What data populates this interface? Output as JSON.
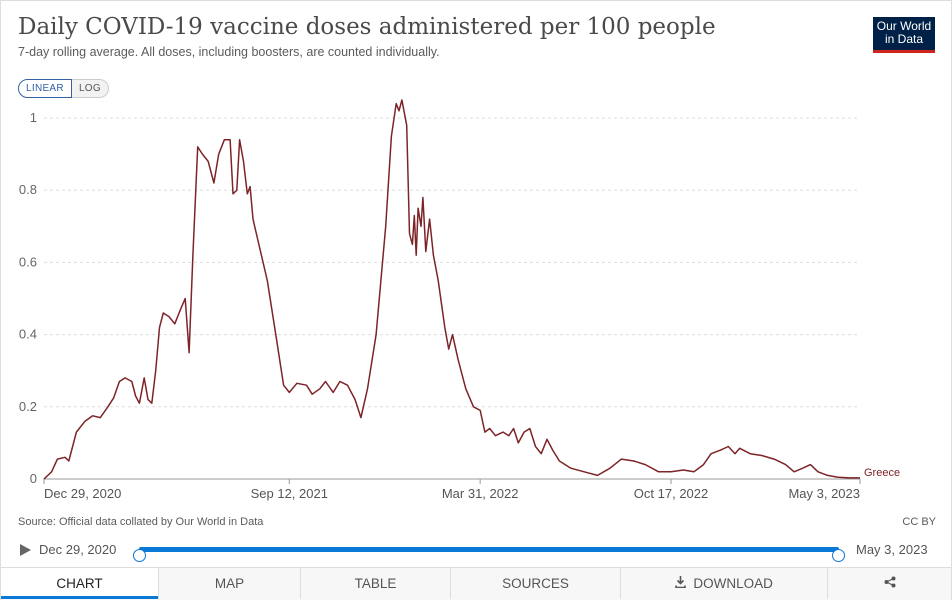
{
  "header": {
    "title": "Daily COVID-19 vaccine doses administered per 100 people",
    "subtitle": "7-day rolling average. All doses, including boosters, are counted individually.",
    "logo_line1": "Our World",
    "logo_line2": "in Data"
  },
  "scale_toggle": {
    "linear": "LINEAR",
    "log": "LOG",
    "selected": "LINEAR"
  },
  "footer": {
    "source": "Source: Official data collated by Our World in Data",
    "license": "CC BY"
  },
  "timeline": {
    "start": "Dec 29, 2020",
    "end": "May 3, 2023"
  },
  "tabs": [
    {
      "label": "CHART",
      "icon": ""
    },
    {
      "label": "MAP",
      "icon": ""
    },
    {
      "label": "TABLE",
      "icon": ""
    },
    {
      "label": "SOURCES",
      "icon": ""
    },
    {
      "label": "DOWNLOAD",
      "icon": "download-icon"
    },
    {
      "label": "",
      "icon": "share-icon"
    }
  ],
  "colors": {
    "series": "#7d2428",
    "accent": "#0a78d6",
    "grid": "#dddddd"
  },
  "chart_data": {
    "type": "line",
    "ylim": [
      0,
      1.05
    ],
    "yticks": [
      0,
      0.2,
      0.4,
      0.6,
      0.8,
      1
    ],
    "ytick_labels": [
      "0",
      "0.2",
      "0.4",
      "0.6",
      "0.8",
      "1"
    ],
    "xticks": [
      {
        "label": "Dec 29, 2020",
        "date": "2020-12-29"
      },
      {
        "label": "Sep 12, 2021",
        "date": "2021-09-12"
      },
      {
        "label": "Mar 31, 2022",
        "date": "2022-03-31"
      },
      {
        "label": "Oct 17, 2022",
        "date": "2022-10-17"
      },
      {
        "label": "May 3, 2023",
        "date": "2023-05-03"
      }
    ],
    "grid": "horizontal dashed",
    "series": [
      {
        "name": "Greece",
        "points": [
          [
            "2020-12-29",
            0.0
          ],
          [
            "2021-01-06",
            0.02
          ],
          [
            "2021-01-12",
            0.055
          ],
          [
            "2021-01-20",
            0.06
          ],
          [
            "2021-01-24",
            0.05
          ],
          [
            "2021-02-01",
            0.13
          ],
          [
            "2021-02-10",
            0.16
          ],
          [
            "2021-02-18",
            0.175
          ],
          [
            "2021-02-26",
            0.17
          ],
          [
            "2021-03-06",
            0.2
          ],
          [
            "2021-03-12",
            0.225
          ],
          [
            "2021-03-18",
            0.27
          ],
          [
            "2021-03-24",
            0.28
          ],
          [
            "2021-03-31",
            0.27
          ],
          [
            "2021-04-04",
            0.23
          ],
          [
            "2021-04-08",
            0.21
          ],
          [
            "2021-04-13",
            0.28
          ],
          [
            "2021-04-17",
            0.22
          ],
          [
            "2021-04-21",
            0.21
          ],
          [
            "2021-04-25",
            0.3
          ],
          [
            "2021-04-29",
            0.42
          ],
          [
            "2021-05-03",
            0.46
          ],
          [
            "2021-05-09",
            0.45
          ],
          [
            "2021-05-15",
            0.43
          ],
          [
            "2021-05-21",
            0.47
          ],
          [
            "2021-05-26",
            0.5
          ],
          [
            "2021-05-30",
            0.35
          ],
          [
            "2021-06-03",
            0.62
          ],
          [
            "2021-06-08",
            0.92
          ],
          [
            "2021-06-13",
            0.9
          ],
          [
            "2021-06-19",
            0.88
          ],
          [
            "2021-06-25",
            0.82
          ],
          [
            "2021-06-30",
            0.9
          ],
          [
            "2021-07-06",
            0.94
          ],
          [
            "2021-07-12",
            0.94
          ],
          [
            "2021-07-15",
            0.79
          ],
          [
            "2021-07-19",
            0.8
          ],
          [
            "2021-07-22",
            0.94
          ],
          [
            "2021-07-26",
            0.88
          ],
          [
            "2021-07-30",
            0.79
          ],
          [
            "2021-08-02",
            0.81
          ],
          [
            "2021-08-05",
            0.72
          ],
          [
            "2021-08-12",
            0.64
          ],
          [
            "2021-08-20",
            0.55
          ],
          [
            "2021-08-30",
            0.38
          ],
          [
            "2021-09-06",
            0.26
          ],
          [
            "2021-09-12",
            0.24
          ],
          [
            "2021-09-20",
            0.265
          ],
          [
            "2021-09-30",
            0.26
          ],
          [
            "2021-10-06",
            0.235
          ],
          [
            "2021-10-14",
            0.25
          ],
          [
            "2021-10-20",
            0.27
          ],
          [
            "2021-10-28",
            0.24
          ],
          [
            "2021-11-04",
            0.27
          ],
          [
            "2021-11-12",
            0.26
          ],
          [
            "2021-11-20",
            0.22
          ],
          [
            "2021-11-26",
            0.17
          ],
          [
            "2021-12-03",
            0.25
          ],
          [
            "2021-12-12",
            0.4
          ],
          [
            "2021-12-22",
            0.7
          ],
          [
            "2021-12-28",
            0.95
          ],
          [
            "2022-01-02",
            1.04
          ],
          [
            "2022-01-05",
            1.02
          ],
          [
            "2022-01-08",
            1.05
          ],
          [
            "2022-01-13",
            0.98
          ],
          [
            "2022-01-16",
            0.68
          ],
          [
            "2022-01-19",
            0.65
          ],
          [
            "2022-01-21",
            0.73
          ],
          [
            "2022-01-23",
            0.62
          ],
          [
            "2022-01-25",
            0.75
          ],
          [
            "2022-01-28",
            0.7
          ],
          [
            "2022-01-30",
            0.78
          ],
          [
            "2022-02-02",
            0.63
          ],
          [
            "2022-02-06",
            0.72
          ],
          [
            "2022-02-10",
            0.62
          ],
          [
            "2022-02-15",
            0.55
          ],
          [
            "2022-02-22",
            0.42
          ],
          [
            "2022-02-26",
            0.36
          ],
          [
            "2022-03-02",
            0.4
          ],
          [
            "2022-03-08",
            0.33
          ],
          [
            "2022-03-16",
            0.25
          ],
          [
            "2022-03-24",
            0.2
          ],
          [
            "2022-03-31",
            0.19
          ],
          [
            "2022-04-05",
            0.13
          ],
          [
            "2022-04-10",
            0.14
          ],
          [
            "2022-04-16",
            0.12
          ],
          [
            "2022-04-24",
            0.13
          ],
          [
            "2022-04-30",
            0.12
          ],
          [
            "2022-05-05",
            0.14
          ],
          [
            "2022-05-10",
            0.1
          ],
          [
            "2022-05-16",
            0.13
          ],
          [
            "2022-05-22",
            0.14
          ],
          [
            "2022-05-28",
            0.09
          ],
          [
            "2022-06-03",
            0.07
          ],
          [
            "2022-06-09",
            0.11
          ],
          [
            "2022-06-15",
            0.08
          ],
          [
            "2022-06-22",
            0.05
          ],
          [
            "2022-07-04",
            0.03
          ],
          [
            "2022-07-18",
            0.02
          ],
          [
            "2022-08-01",
            0.01
          ],
          [
            "2022-08-14",
            0.03
          ],
          [
            "2022-08-26",
            0.055
          ],
          [
            "2022-09-08",
            0.05
          ],
          [
            "2022-09-20",
            0.04
          ],
          [
            "2022-10-04",
            0.02
          ],
          [
            "2022-10-17",
            0.02
          ],
          [
            "2022-10-30",
            0.025
          ],
          [
            "2022-11-10",
            0.02
          ],
          [
            "2022-11-20",
            0.04
          ],
          [
            "2022-11-28",
            0.07
          ],
          [
            "2022-12-08",
            0.08
          ],
          [
            "2022-12-16",
            0.09
          ],
          [
            "2022-12-23",
            0.07
          ],
          [
            "2022-12-28",
            0.085
          ],
          [
            "2023-01-08",
            0.07
          ],
          [
            "2023-01-20",
            0.065
          ],
          [
            "2023-02-02",
            0.055
          ],
          [
            "2023-02-14",
            0.04
          ],
          [
            "2023-02-23",
            0.02
          ],
          [
            "2023-03-04",
            0.03
          ],
          [
            "2023-03-12",
            0.04
          ],
          [
            "2023-03-20",
            0.02
          ],
          [
            "2023-03-30",
            0.01
          ],
          [
            "2023-04-10",
            0.005
          ],
          [
            "2023-04-22",
            0.003
          ],
          [
            "2023-05-03",
            0.003
          ]
        ]
      }
    ]
  }
}
